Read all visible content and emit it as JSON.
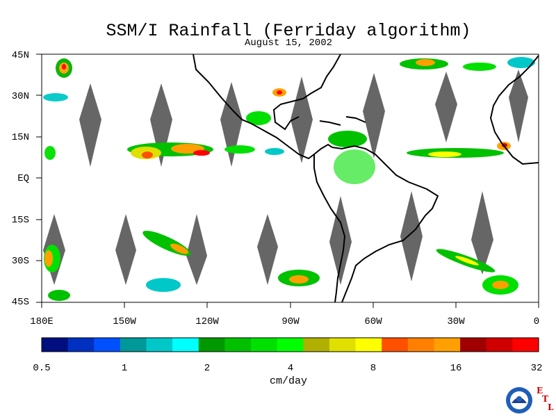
{
  "title": "SSM/I Rainfall (Ferriday algorithm)",
  "date": "August 15, 2002",
  "lat_labels": [
    "45N",
    "30N",
    "15N",
    "EQ",
    "15S",
    "30S",
    "45S"
  ],
  "lon_labels": [
    "180E",
    "150W",
    "120W",
    "90W",
    "60W",
    "30W",
    "0"
  ],
  "colorbar": {
    "ticks": [
      "0.5",
      "1",
      "2",
      "4",
      "8",
      "16",
      "32"
    ],
    "unit": "cm/day",
    "colors": [
      "#000e80",
      "#0030c0",
      "#0050ff",
      "#009898",
      "#00c8c8",
      "#00ffff",
      "#009800",
      "#00c000",
      "#00e000",
      "#00ff00",
      "#b0b000",
      "#e0e000",
      "#ffff00",
      "#ff5000",
      "#ff8000",
      "#ffa000",
      "#a00000",
      "#d00000",
      "#ff0000"
    ]
  },
  "map": {
    "extent": {
      "lon": [
        -180,
        0
      ],
      "lat": [
        -45,
        45
      ]
    },
    "missing_swath_color": "#666666",
    "coast_color": "#000000"
  },
  "logo": {
    "emblem": "noaa-emblem",
    "letters": [
      "E",
      "T",
      "L"
    ],
    "letter_color": "#cc0000"
  }
}
